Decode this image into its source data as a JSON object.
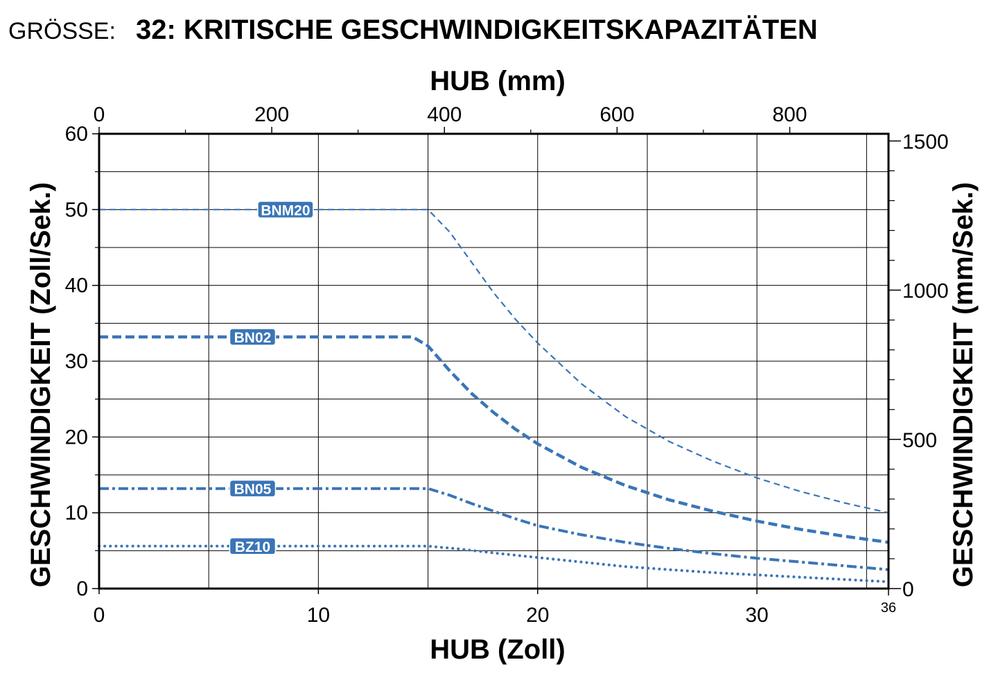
{
  "header": {
    "prefix": "GRÖSSE:",
    "title": "32: KRITISCHE GESCHWINDIGKEITSKAPAZITÄTEN"
  },
  "colors": {
    "series": "#3a75b7",
    "axis": "#000000",
    "grid": "#000000"
  },
  "chart_data": {
    "type": "line",
    "xlabel": "HUB (Zoll)",
    "x2label": "HUB (mm)",
    "ylabel": "GESCHWINDIGKEIT (Zoll/Sek.)",
    "y2label": "GESCHWINDIGKEIT (mm/Sek.)",
    "xlim": [
      0,
      36
    ],
    "ylim": [
      0,
      60
    ],
    "x2lim": [
      0,
      914.4
    ],
    "y2lim": [
      0,
      1524
    ],
    "grid": true,
    "xticks": [
      {
        "value": 0,
        "label": "0"
      },
      {
        "value": 10,
        "label": "10"
      },
      {
        "value": 20,
        "label": "20"
      },
      {
        "value": 30,
        "label": "30"
      },
      {
        "value": 36,
        "label": "36"
      }
    ],
    "xgrid": [
      5,
      10,
      15,
      20,
      25,
      30,
      35
    ],
    "x2ticks": [
      {
        "value": 0,
        "label": "0"
      },
      {
        "value": 200,
        "label": "200"
      },
      {
        "value": 400,
        "label": "400"
      },
      {
        "value": 600,
        "label": "600"
      },
      {
        "value": 800,
        "label": "800"
      }
    ],
    "x2minor": [
      100,
      300,
      500,
      700
    ],
    "yticks": [
      {
        "value": 0,
        "label": "0"
      },
      {
        "value": 10,
        "label": "10"
      },
      {
        "value": 20,
        "label": "20"
      },
      {
        "value": 30,
        "label": "30"
      },
      {
        "value": 40,
        "label": "40"
      },
      {
        "value": 50,
        "label": "50"
      },
      {
        "value": 60,
        "label": "60"
      }
    ],
    "ygrid": [
      5,
      10,
      15,
      20,
      25,
      30,
      35,
      40,
      45,
      50,
      55
    ],
    "y2ticks": [
      {
        "value": 0,
        "label": "0"
      },
      {
        "value": 500,
        "label": "500"
      },
      {
        "value": 1000,
        "label": "1000"
      },
      {
        "value": 1500,
        "label": "1500"
      }
    ],
    "y2minor": [
      100,
      200,
      300,
      400,
      600,
      700,
      800,
      900,
      1100,
      1200,
      1300,
      1400
    ],
    "series": [
      {
        "name": "BNM20",
        "style": "dashed-thin",
        "label_at": [
          8.5,
          50
        ],
        "points": [
          [
            0,
            50
          ],
          [
            15,
            50
          ],
          [
            16,
            47
          ],
          [
            17,
            43
          ],
          [
            18,
            39
          ],
          [
            19,
            35.5
          ],
          [
            20,
            32.4
          ],
          [
            22,
            27
          ],
          [
            24,
            22.7
          ],
          [
            26,
            19.4
          ],
          [
            28,
            16.8
          ],
          [
            30,
            14.6
          ],
          [
            32,
            12.8
          ],
          [
            34,
            11.3
          ],
          [
            36,
            10.0
          ]
        ]
      },
      {
        "name": "BN02",
        "style": "dashed-thick",
        "label_at": [
          7,
          33.2
        ],
        "points": [
          [
            0,
            33.2
          ],
          [
            14.3,
            33.2
          ],
          [
            15,
            32
          ],
          [
            16,
            28.7
          ],
          [
            17,
            25.7
          ],
          [
            18,
            23.2
          ],
          [
            19,
            21
          ],
          [
            20,
            19.1
          ],
          [
            22,
            16
          ],
          [
            24,
            13.6
          ],
          [
            26,
            11.7
          ],
          [
            28,
            10.2
          ],
          [
            30,
            8.9
          ],
          [
            32,
            7.8
          ],
          [
            34,
            6.9
          ],
          [
            36,
            6.1
          ]
        ]
      },
      {
        "name": "BN05",
        "style": "dashdot",
        "label_at": [
          7,
          13.2
        ],
        "points": [
          [
            0,
            13.2
          ],
          [
            15,
            13.2
          ],
          [
            16,
            12.3
          ],
          [
            17,
            11.2
          ],
          [
            18,
            10.2
          ],
          [
            19,
            9.2
          ],
          [
            20,
            8.3
          ],
          [
            22,
            7.1
          ],
          [
            24,
            6.1
          ],
          [
            26,
            5.3
          ],
          [
            28,
            4.6
          ],
          [
            30,
            4.0
          ],
          [
            32,
            3.5
          ],
          [
            34,
            3.0
          ],
          [
            36,
            2.5
          ]
        ]
      },
      {
        "name": "BZ10",
        "style": "dotted",
        "label_at": [
          7,
          5.6
        ],
        "points": [
          [
            0,
            5.6
          ],
          [
            15,
            5.6
          ],
          [
            16.5,
            5.2
          ],
          [
            18,
            4.7
          ],
          [
            20,
            4.1
          ],
          [
            22,
            3.5
          ],
          [
            24,
            2.9
          ],
          [
            26,
            2.5
          ],
          [
            28,
            2.1
          ],
          [
            30,
            1.8
          ],
          [
            32,
            1.5
          ],
          [
            34,
            1.2
          ],
          [
            36,
            0.9
          ]
        ]
      }
    ]
  }
}
